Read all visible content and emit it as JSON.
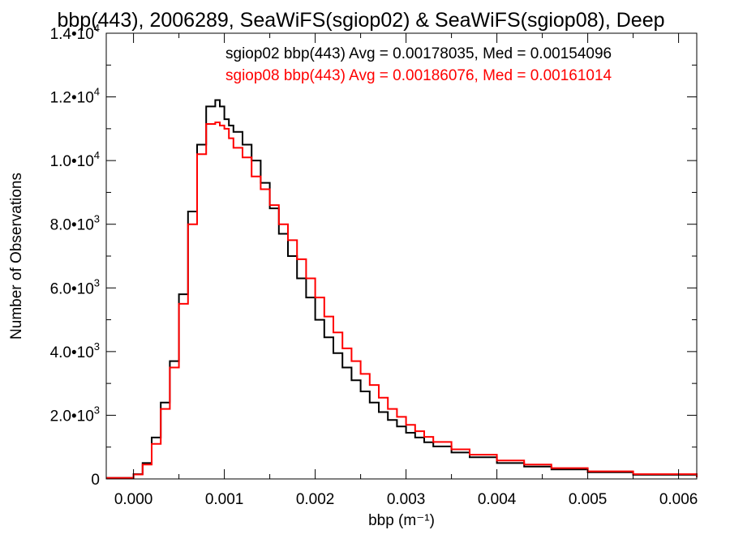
{
  "chart_data": {
    "type": "line",
    "title": "bbp(443), 2006289, SeaWiFS(sgiop02) & SeaWiFS(sgiop08), Deep",
    "xlabel": "bbp (m⁻¹)",
    "ylabel": "Number of Observations",
    "xlim": [
      -0.0003,
      0.0062
    ],
    "ylim": [
      0,
      14000
    ],
    "x_ticks": [
      0.0,
      0.001,
      0.002,
      0.003,
      0.004,
      0.005,
      0.006
    ],
    "x_tick_labels": [
      "0.000",
      "0.001",
      "0.002",
      "0.003",
      "0.004",
      "0.005",
      "0.006"
    ],
    "y_ticks": [
      0,
      2000,
      4000,
      6000,
      8000,
      10000,
      12000,
      14000
    ],
    "y_tick_labels": [
      {
        "mantissa": "0",
        "exponent": ""
      },
      {
        "mantissa": "2.0•10",
        "exponent": "3"
      },
      {
        "mantissa": "4.0•10",
        "exponent": "3"
      },
      {
        "mantissa": "6.0•10",
        "exponent": "3"
      },
      {
        "mantissa": "8.0•10",
        "exponent": "3"
      },
      {
        "mantissa": "1.0•10",
        "exponent": "4"
      },
      {
        "mantissa": "1.2•10",
        "exponent": "4"
      },
      {
        "mantissa": "1.4•10",
        "exponent": "4"
      }
    ],
    "grid": false,
    "legend_position": "top-right",
    "annotations": [
      {
        "text": "sgiop02 bbp(443) Avg = 0.00178035, Med = 0.00154096",
        "color": "#000000"
      },
      {
        "text": "sgiop08 bbp(443) Avg = 0.00186076, Med = 0.00161014",
        "color": "#ff0000"
      }
    ],
    "series": [
      {
        "color": "#000000",
        "x": [
          -0.0003,
          0.0,
          0.0001,
          0.0002,
          0.0003,
          0.0004,
          0.0005,
          0.0006,
          0.0007,
          0.0008,
          0.0009,
          0.00095,
          0.001,
          0.00105,
          0.0011,
          0.0012,
          0.0013,
          0.0014,
          0.0015,
          0.0016,
          0.0017,
          0.0018,
          0.0019,
          0.002,
          0.0021,
          0.0022,
          0.0023,
          0.0024,
          0.0025,
          0.0026,
          0.0027,
          0.0028,
          0.0029,
          0.003,
          0.0031,
          0.0032,
          0.0033,
          0.0035,
          0.0037,
          0.004,
          0.0043,
          0.0046,
          0.005,
          0.0055,
          0.0062
        ],
        "y": [
          30,
          150,
          500,
          1300,
          2400,
          3700,
          5800,
          8400,
          10500,
          11700,
          11900,
          11700,
          11300,
          11100,
          10900,
          10500,
          10000,
          9300,
          8500,
          7700,
          7000,
          6300,
          5700,
          5000,
          4450,
          3950,
          3500,
          3100,
          2750,
          2400,
          2100,
          1850,
          1650,
          1450,
          1300,
          1150,
          1020,
          830,
          680,
          500,
          390,
          300,
          210,
          130,
          50
        ]
      },
      {
        "color": "#ff0000",
        "x": [
          -0.0003,
          0.0,
          0.0001,
          0.0002,
          0.0003,
          0.0004,
          0.0005,
          0.0006,
          0.0007,
          0.0008,
          0.0009,
          0.00095,
          0.001,
          0.00105,
          0.0011,
          0.0012,
          0.0013,
          0.0014,
          0.0015,
          0.0016,
          0.0017,
          0.0018,
          0.0019,
          0.002,
          0.0021,
          0.0022,
          0.0023,
          0.0024,
          0.0025,
          0.0026,
          0.0027,
          0.0028,
          0.0029,
          0.003,
          0.0031,
          0.0032,
          0.0033,
          0.0035,
          0.0037,
          0.004,
          0.0043,
          0.0046,
          0.005,
          0.0055,
          0.0062
        ],
        "y": [
          30,
          140,
          450,
          1100,
          2200,
          3500,
          5500,
          8000,
          10200,
          11150,
          11200,
          11100,
          11000,
          10700,
          10400,
          10100,
          9500,
          9100,
          8600,
          8000,
          7500,
          6900,
          6300,
          5700,
          5100,
          4600,
          4100,
          3700,
          3300,
          2950,
          2550,
          2200,
          1950,
          1700,
          1500,
          1320,
          1160,
          930,
          760,
          580,
          450,
          340,
          240,
          150,
          60
        ]
      }
    ]
  }
}
